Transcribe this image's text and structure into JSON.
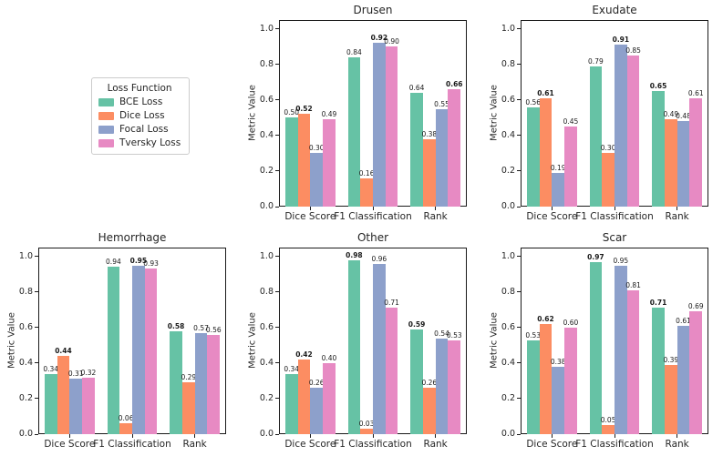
{
  "legend": {
    "title": "Loss Function"
  },
  "chart_data": {
    "type": "bar",
    "categories": [
      "Dice Score",
      "F1 Classification",
      "Rank"
    ],
    "ylabel": "Metric Value",
    "yticks": [
      0.0,
      0.2,
      0.4,
      0.6,
      0.8,
      1.0
    ],
    "ylim": [
      0,
      1.05
    ],
    "legend_position": "upper-left outside (first grid cell)",
    "grid": false,
    "bar_label_format": "0.00, bold = max value within each category group",
    "series_names": [
      "BCE Loss",
      "Dice Loss",
      "Focal Loss",
      "Tversky Loss"
    ],
    "colors": [
      "#66c2a5",
      "#fc8d62",
      "#8da0cb",
      "#e78ac3"
    ],
    "panels": [
      {
        "title": "Drusen",
        "series": [
          {
            "name": "BCE Loss",
            "values": [
              0.5,
              0.84,
              0.64
            ]
          },
          {
            "name": "Dice Loss",
            "values": [
              0.52,
              0.16,
              0.38
            ]
          },
          {
            "name": "Focal Loss",
            "values": [
              0.3,
              0.92,
              0.55
            ]
          },
          {
            "name": "Tversky Loss",
            "values": [
              0.49,
              0.9,
              0.66
            ]
          }
        ]
      },
      {
        "title": "Exudate",
        "series": [
          {
            "name": "BCE Loss",
            "values": [
              0.56,
              0.79,
              0.65
            ]
          },
          {
            "name": "Dice Loss",
            "values": [
              0.61,
              0.3,
              0.49
            ]
          },
          {
            "name": "Focal Loss",
            "values": [
              0.19,
              0.91,
              0.48
            ]
          },
          {
            "name": "Tversky Loss",
            "values": [
              0.45,
              0.85,
              0.61
            ]
          }
        ]
      },
      {
        "title": "Hemorrhage",
        "series": [
          {
            "name": "BCE Loss",
            "values": [
              0.34,
              0.94,
              0.58
            ]
          },
          {
            "name": "Dice Loss",
            "values": [
              0.44,
              0.06,
              0.29
            ]
          },
          {
            "name": "Focal Loss",
            "values": [
              0.31,
              0.95,
              0.57
            ]
          },
          {
            "name": "Tversky Loss",
            "values": [
              0.32,
              0.93,
              0.56
            ]
          }
        ]
      },
      {
        "title": "Other",
        "series": [
          {
            "name": "BCE Loss",
            "values": [
              0.34,
              0.98,
              0.59
            ]
          },
          {
            "name": "Dice Loss",
            "values": [
              0.42,
              0.03,
              0.26
            ]
          },
          {
            "name": "Focal Loss",
            "values": [
              0.26,
              0.96,
              0.54
            ]
          },
          {
            "name": "Tversky Loss",
            "values": [
              0.4,
              0.71,
              0.53
            ]
          }
        ]
      },
      {
        "title": "Scar",
        "series": [
          {
            "name": "BCE Loss",
            "values": [
              0.53,
              0.97,
              0.71
            ]
          },
          {
            "name": "Dice Loss",
            "values": [
              0.62,
              0.05,
              0.39
            ]
          },
          {
            "name": "Focal Loss",
            "values": [
              0.38,
              0.95,
              0.61
            ]
          },
          {
            "name": "Tversky Loss",
            "values": [
              0.6,
              0.81,
              0.69
            ]
          }
        ]
      }
    ]
  }
}
